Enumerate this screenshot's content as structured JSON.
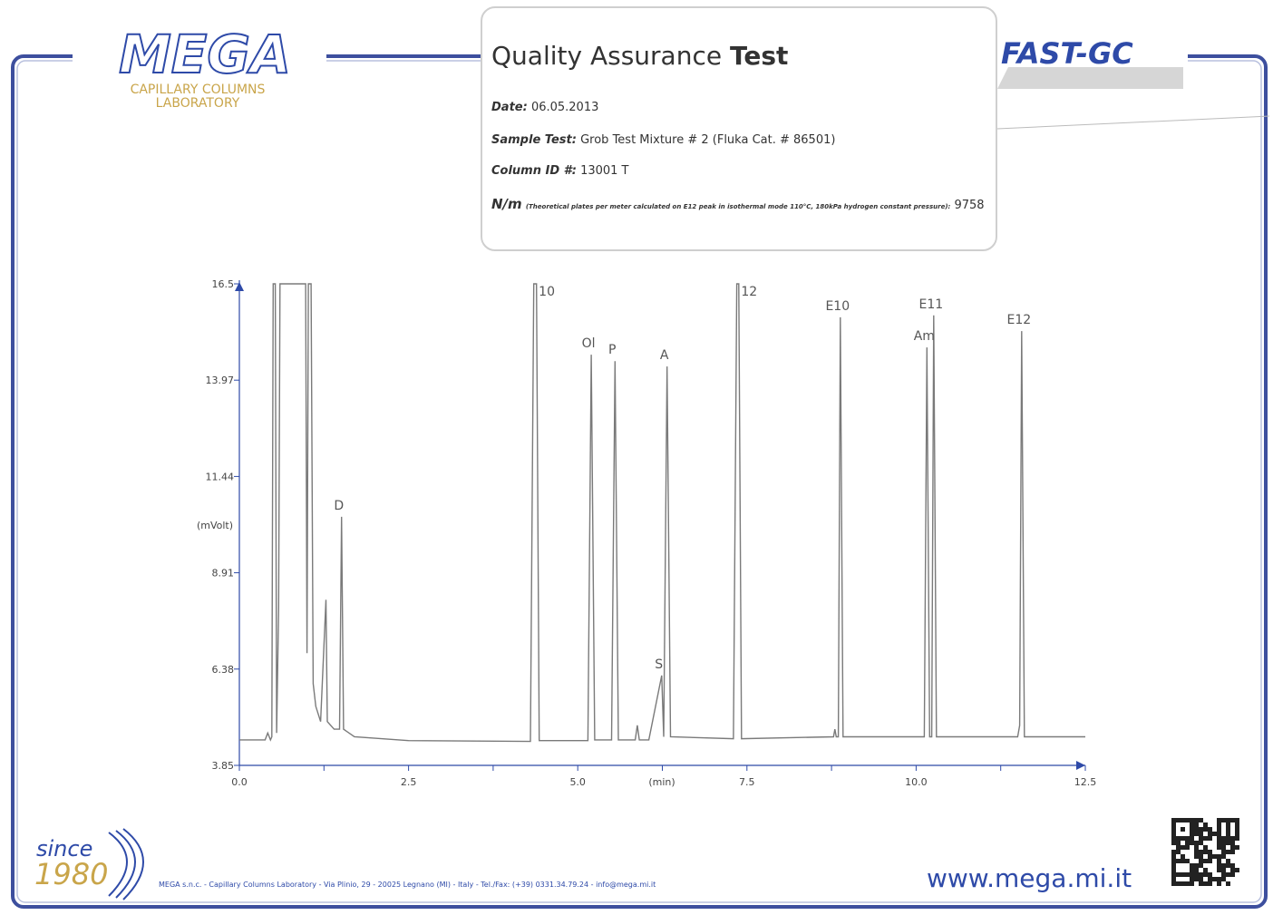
{
  "header": {
    "logo": "MEGA",
    "logo_sub1": "CAPILLARY COLUMNS",
    "logo_sub2": "LABORATORY",
    "brand": "FAST-GC"
  },
  "info": {
    "title_main": "Quality Assurance",
    "title_bold": "Test",
    "date_label": "Date:",
    "date": "06.05.2013",
    "sample_label": "Sample Test:",
    "sample": "Grob Test Mixture # 2 (Fluka Cat. # 86501)",
    "column_label": "Column ID #:",
    "column": "13001 T",
    "nm_label": "N/m",
    "nm_note": "(Theoretical plates per meter calculated on E12 peak in isothermal mode 110°C, 180kPa hydrogen constant pressure):",
    "nm_value": "9758"
  },
  "footer": {
    "since": "since",
    "year": "1980",
    "address": "MEGA s.n.c. - Capillary Columns Laboratory - Via Plinio, 29 - 20025 Legnano (MI) - Italy - Tel./Fax: (+39) 0331.34.79.24 - info@mega.mi.it",
    "website": "www.mega.mi.it"
  },
  "chart_data": {
    "type": "line",
    "xlabel": "(min)",
    "ylabel": "(mVolt)",
    "color": "#7a7a7a",
    "xlim": [
      0,
      12.5
    ],
    "ylim": [
      3.85,
      16.5
    ],
    "xticks": [
      {
        "value": 0,
        "label": "0.0"
      },
      {
        "value": 1.25,
        "label": null
      },
      2.5,
      {
        "value": 3.75,
        "label": null
      },
      {
        "value": 5,
        "label": "5.0"
      },
      {
        "value": 6.25,
        "label": null
      },
      7.5,
      {
        "value": 8.75,
        "label": null
      },
      {
        "value": 10,
        "label": "10.0"
      },
      {
        "value": 11.25,
        "label": null
      },
      12.5
    ],
    "yticks": [
      3.85,
      6.38,
      8.91,
      11.44,
      13.97,
      16.5
    ],
    "x": [
      0,
      0.38,
      0.42,
      0.46,
      0.48,
      0.5,
      0.53,
      0.55,
      0.58,
      0.6,
      0.98,
      1.0,
      1.02,
      1.06,
      1.09,
      1.13,
      1.2,
      1.28,
      1.3,
      1.4,
      1.48,
      1.51,
      1.54,
      1.7,
      2.5,
      4.3,
      4.35,
      4.39,
      4.43,
      5.15,
      5.2,
      5.25,
      5.5,
      5.55,
      5.6,
      5.85,
      5.88,
      5.91,
      6.05,
      6.24,
      6.27,
      6.32,
      6.37,
      7.3,
      7.35,
      7.38,
      7.42,
      8.78,
      8.8,
      8.82,
      8.85,
      8.88,
      8.92,
      10.12,
      10.16,
      10.2,
      10.23,
      10.26,
      10.3,
      11.5,
      11.53,
      11.56,
      11.6,
      12.5
    ],
    "values": [
      4.52,
      4.52,
      4.7,
      4.52,
      4.6,
      16.5,
      16.5,
      4.7,
      8.0,
      16.5,
      16.5,
      6.8,
      16.5,
      16.5,
      6.0,
      5.4,
      5.0,
      8.2,
      5.0,
      4.8,
      4.8,
      10.38,
      4.8,
      4.6,
      4.5,
      4.48,
      16.5,
      16.5,
      4.5,
      4.5,
      14.64,
      4.52,
      4.52,
      14.47,
      4.52,
      4.52,
      4.9,
      4.52,
      4.52,
      6.21,
      4.6,
      14.33,
      4.6,
      4.55,
      16.5,
      16.5,
      4.55,
      4.6,
      4.8,
      4.6,
      4.6,
      15.62,
      4.6,
      4.6,
      14.83,
      4.6,
      4.6,
      15.67,
      4.6,
      4.6,
      4.9,
      15.26,
      4.6,
      4.6
    ],
    "annotations": [
      {
        "text": "D",
        "x": 1.51
      },
      {
        "text": "10",
        "x": 4.37
      },
      {
        "text": "Ol",
        "x": 5.2
      },
      {
        "text": "P",
        "x": 5.55
      },
      {
        "text": "S",
        "x": 6.24
      },
      {
        "text": "A",
        "x": 6.32
      },
      {
        "text": "12",
        "x": 7.36
      },
      {
        "text": "E10",
        "x": 8.88
      },
      {
        "text": "Am",
        "x": 10.16
      },
      {
        "text": "E11",
        "x": 10.26
      },
      {
        "text": "E12",
        "x": 11.56
      }
    ]
  }
}
